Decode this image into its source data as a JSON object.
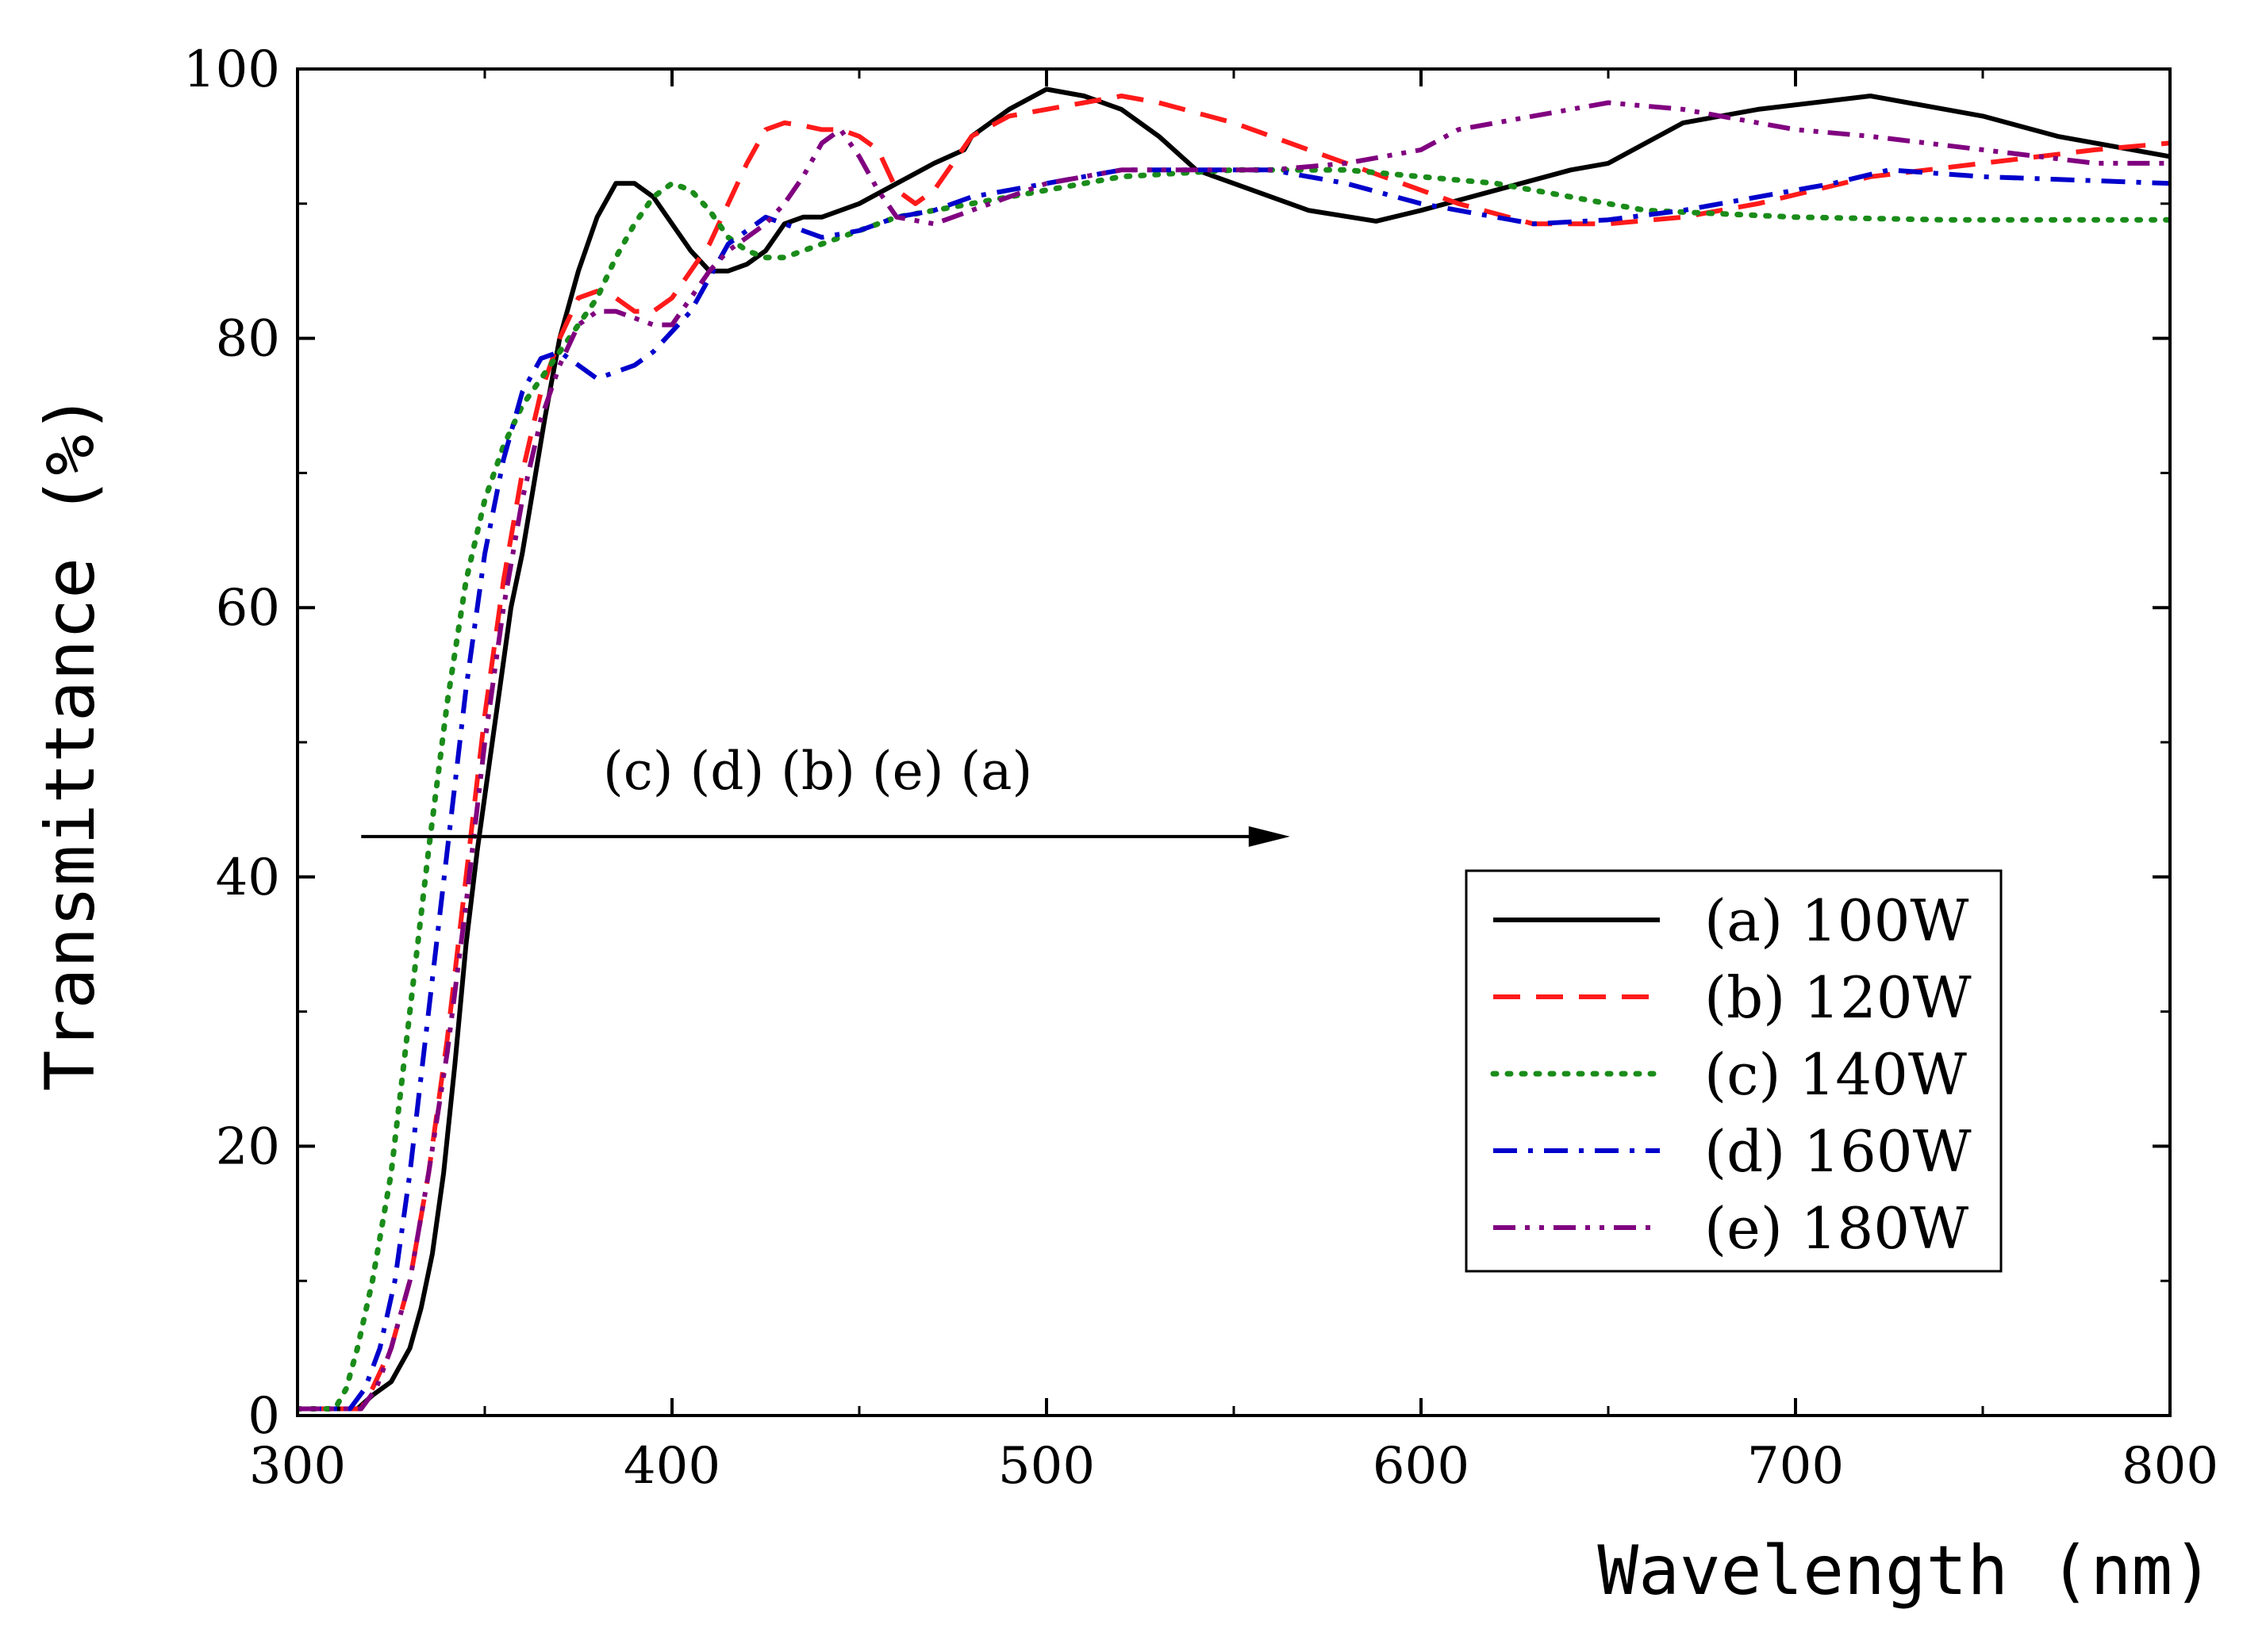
{
  "chart_data": {
    "type": "line",
    "title": "",
    "xlabel": "Wavelength (nm)",
    "ylabel": "Transmittance (%)",
    "xlim": [
      300,
      800
    ],
    "ylim": [
      0,
      100
    ],
    "xticks": [
      300,
      400,
      500,
      600,
      700,
      800
    ],
    "yticks": [
      0,
      20,
      40,
      60,
      80,
      100
    ],
    "xtick_labels": [
      "300",
      "400",
      "500",
      "600",
      "700",
      "800"
    ],
    "ytick_labels": [
      "0",
      "20",
      "40",
      "60",
      "80",
      "100"
    ],
    "grid": false,
    "legend_position": "bottom-right",
    "annotation": {
      "text": "(c) (d) (b) (e) (a)",
      "arrow_from": [
        317,
        43
      ],
      "arrow_to": [
        565,
        43
      ]
    },
    "series": [
      {
        "name": "(a) 100W",
        "color": "#000000",
        "dash": "solid",
        "x": [
          300,
          316,
          320,
          325,
          330,
          333,
          336,
          339,
          342,
          345,
          348,
          351,
          354,
          357,
          360,
          363,
          366,
          370,
          375,
          380,
          385,
          390,
          395,
          400,
          405,
          410,
          415,
          420,
          425,
          430,
          435,
          440,
          445,
          450,
          460,
          470,
          478,
          480,
          485,
          490,
          500,
          510,
          520,
          530,
          540,
          550,
          570,
          588,
          600,
          620,
          640,
          650,
          660,
          670,
          690,
          720,
          750,
          770,
          800
        ],
        "y": [
          0.5,
          0.5,
          1.5,
          2.5,
          5,
          8,
          12,
          18,
          26,
          35,
          42,
          48,
          54,
          60,
          64,
          69,
          74,
          80,
          85,
          89,
          91.5,
          91.5,
          90.5,
          88.5,
          86.5,
          85,
          85,
          85.5,
          86.5,
          88.5,
          89,
          89,
          89.5,
          90,
          91.5,
          93,
          94,
          95,
          96,
          97,
          98.5,
          98,
          97,
          95,
          92.5,
          91.5,
          89.5,
          88.7,
          89.5,
          91,
          92.5,
          93,
          94.5,
          96,
          97,
          98,
          96.5,
          95,
          93.5
        ]
      },
      {
        "name": "(b) 120W",
        "color": "#ff1a1a",
        "dash": "long-dash",
        "x": [
          300,
          317,
          320,
          325,
          330,
          335,
          340,
          345,
          350,
          355,
          360,
          365,
          370,
          375,
          380,
          385,
          390,
          395,
          400,
          405,
          410,
          415,
          420,
          425,
          430,
          435,
          440,
          445,
          450,
          455,
          460,
          465,
          470,
          475,
          480,
          490,
          500,
          510,
          520,
          530,
          550,
          570,
          590,
          610,
          630,
          650,
          670,
          690,
          720,
          750,
          780,
          800
        ],
        "y": [
          0.5,
          0.5,
          2,
          5,
          10,
          18,
          28,
          40,
          52,
          62,
          70,
          76,
          80,
          83,
          83.5,
          83,
          82,
          82,
          83,
          85,
          87,
          90,
          93,
          95.5,
          96,
          95.8,
          95.5,
          95.5,
          95,
          94,
          91,
          90,
          91,
          93,
          95,
          96.5,
          97,
          97.5,
          98,
          97.5,
          96,
          94,
          92,
          90,
          88.5,
          88.5,
          89,
          90,
          92,
          93,
          94,
          94.5
        ]
      },
      {
        "name": "(c) 140W",
        "color": "#1a8c1a",
        "dash": "dotted",
        "x": [
          300,
          310,
          313,
          316,
          320,
          325,
          330,
          335,
          340,
          345,
          350,
          355,
          360,
          365,
          370,
          375,
          380,
          385,
          390,
          395,
          400,
          405,
          410,
          415,
          420,
          425,
          430,
          440,
          450,
          460,
          480,
          500,
          520,
          550,
          580,
          600,
          620,
          640,
          660,
          700,
          740,
          780,
          800
        ],
        "y": [
          0.5,
          0.5,
          2,
          5,
          10,
          18,
          30,
          42,
          53,
          62,
          68,
          72,
          75,
          77,
          79,
          81,
          83,
          86,
          88.5,
          90.5,
          91.5,
          91,
          89.5,
          87.5,
          86.5,
          86,
          86,
          87,
          88,
          89,
          90,
          91,
          92,
          92.5,
          92.5,
          92,
          91.5,
          90.5,
          89.5,
          89,
          88.8,
          88.8,
          88.8
        ]
      },
      {
        "name": "(d) 160W",
        "color": "#0000cc",
        "dash": "dash-dot",
        "x": [
          300,
          314,
          318,
          322,
          326,
          330,
          335,
          340,
          345,
          350,
          355,
          360,
          365,
          370,
          375,
          380,
          385,
          390,
          395,
          400,
          405,
          410,
          415,
          420,
          425,
          430,
          440,
          450,
          460,
          470,
          480,
          500,
          520,
          540,
          560,
          580,
          600,
          610,
          630,
          650,
          670,
          690,
          710,
          725,
          750,
          780,
          800
        ],
        "y": [
          0.5,
          0.5,
          2,
          5,
          10,
          18,
          30,
          42,
          54,
          64,
          71,
          76,
          78.5,
          79,
          78,
          77,
          77.5,
          78,
          79,
          80.5,
          82,
          84.5,
          87,
          88,
          89,
          88.5,
          87.5,
          88,
          89,
          89.5,
          90.5,
          91.5,
          92.5,
          92.5,
          92.5,
          91.5,
          90,
          89.5,
          88.5,
          88.8,
          89.5,
          90.5,
          91.5,
          92.5,
          92,
          91.7,
          91.5
        ]
      },
      {
        "name": "(e) 180W",
        "color": "#800080",
        "dash": "dash-dot-dot",
        "x": [
          300,
          317,
          321,
          325,
          330,
          335,
          340,
          345,
          350,
          355,
          360,
          365,
          370,
          375,
          380,
          385,
          390,
          395,
          400,
          405,
          410,
          415,
          420,
          425,
          430,
          435,
          440,
          445,
          450,
          455,
          460,
          470,
          480,
          500,
          520,
          540,
          560,
          580,
          600,
          610,
          620,
          640,
          650,
          670,
          700,
          720,
          750,
          780,
          800
        ],
        "y": [
          0.5,
          0.5,
          2,
          5,
          10,
          18,
          27,
          38,
          50,
          60,
          68,
          74,
          78,
          81,
          82,
          82,
          81.5,
          81,
          81,
          83,
          85,
          86.5,
          87.5,
          88.5,
          90,
          92,
          94.5,
          95.5,
          93.5,
          91,
          89,
          88.5,
          89.5,
          91.5,
          92.5,
          92.5,
          92.5,
          93,
          94,
          95.5,
          96,
          97,
          97.5,
          97,
          95.5,
          95,
          94,
          93,
          93
        ]
      }
    ]
  }
}
